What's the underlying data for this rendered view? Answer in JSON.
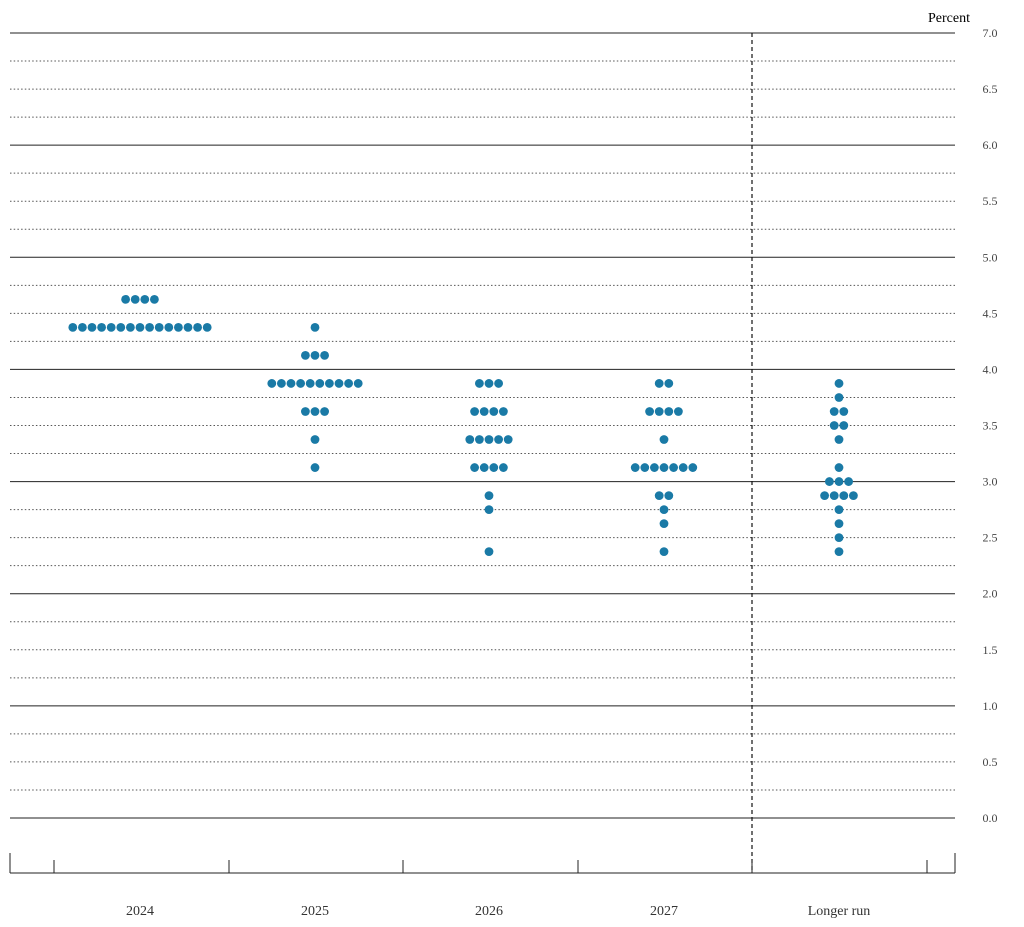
{
  "chart_data": {
    "type": "scatter",
    "subtype": "dot-plot",
    "ylabel": "Percent",
    "ylim": [
      0,
      7
    ],
    "ytick_labels": [
      "0.0",
      "0.5",
      "1.0",
      "1.5",
      "2.0",
      "2.5",
      "3.0",
      "3.5",
      "4.0",
      "4.5",
      "5.0",
      "5.5",
      "6.0",
      "6.5",
      "7.0"
    ],
    "grid": true,
    "categories": [
      "2024",
      "2025",
      "2026",
      "2027",
      "Longer run"
    ],
    "dot_color": "#1a7aa6",
    "divider_before": "Longer run",
    "points": [
      {
        "category": "2024",
        "dots": [
          {
            "y": 4.625,
            "count": 4
          },
          {
            "y": 4.375,
            "count": 15
          }
        ]
      },
      {
        "category": "2025",
        "dots": [
          {
            "y": 4.375,
            "count": 1
          },
          {
            "y": 4.125,
            "count": 3
          },
          {
            "y": 3.875,
            "count": 10
          },
          {
            "y": 3.625,
            "count": 3
          },
          {
            "y": 3.375,
            "count": 1
          },
          {
            "y": 3.125,
            "count": 1
          }
        ]
      },
      {
        "category": "2026",
        "dots": [
          {
            "y": 3.875,
            "count": 3
          },
          {
            "y": 3.625,
            "count": 4
          },
          {
            "y": 3.375,
            "count": 5
          },
          {
            "y": 3.125,
            "count": 4
          },
          {
            "y": 2.875,
            "count": 1
          },
          {
            "y": 2.75,
            "count": 1
          },
          {
            "y": 2.375,
            "count": 1
          }
        ]
      },
      {
        "category": "2027",
        "dots": [
          {
            "y": 3.875,
            "count": 2
          },
          {
            "y": 3.625,
            "count": 4
          },
          {
            "y": 3.375,
            "count": 1
          },
          {
            "y": 3.125,
            "count": 7
          },
          {
            "y": 2.875,
            "count": 2
          },
          {
            "y": 2.75,
            "count": 1
          },
          {
            "y": 2.625,
            "count": 1
          },
          {
            "y": 2.375,
            "count": 1
          }
        ]
      },
      {
        "category": "Longer run",
        "dots": [
          {
            "y": 3.875,
            "count": 1
          },
          {
            "y": 3.75,
            "count": 1
          },
          {
            "y": 3.625,
            "count": 2
          },
          {
            "y": 3.5,
            "count": 2
          },
          {
            "y": 3.375,
            "count": 1
          },
          {
            "y": 3.125,
            "count": 1
          },
          {
            "y": 3.0,
            "count": 3
          },
          {
            "y": 2.875,
            "count": 4
          },
          {
            "y": 2.75,
            "count": 1
          },
          {
            "y": 2.625,
            "count": 1
          },
          {
            "y": 2.5,
            "count": 1
          },
          {
            "y": 2.375,
            "count": 1
          }
        ]
      }
    ]
  }
}
